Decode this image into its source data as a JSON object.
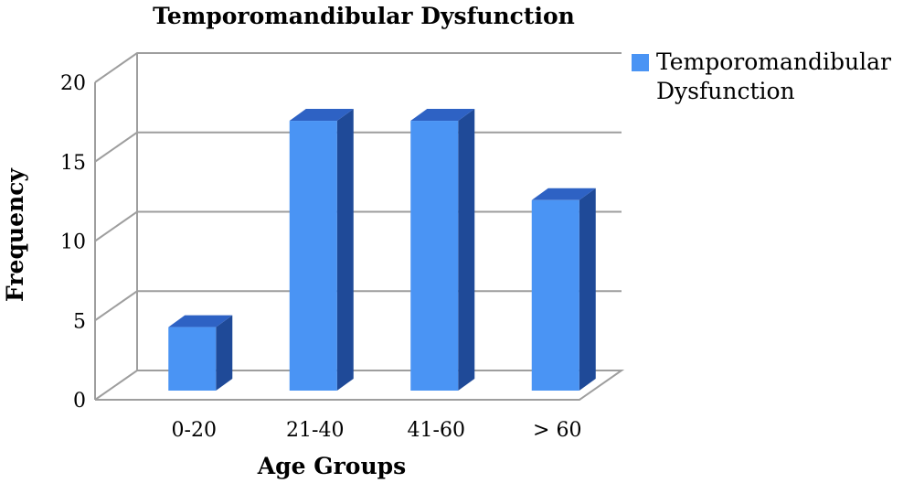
{
  "chart_data": {
    "type": "bar",
    "title": "Temporomandibular Dysfunction",
    "xlabel": "Age Groups",
    "ylabel": "Frequency",
    "categories": [
      "0-20",
      "21-40",
      "41-60",
      "> 60"
    ],
    "series": [
      {
        "name": "Temporomandibular Dysfunction",
        "legend_lines": [
          "Temporomandibular",
          "Dysfunction"
        ],
        "values": [
          4,
          17,
          17,
          12
        ]
      }
    ],
    "ylim": [
      0,
      20
    ],
    "yticks": [
      "0",
      "5",
      "10",
      "15",
      "20"
    ],
    "grid": true,
    "legend_position": "right",
    "colors": {
      "front": "#4a94f4",
      "top": "#2e62c4",
      "side": "#1f4a98",
      "grid": "#9e9e9e"
    }
  }
}
